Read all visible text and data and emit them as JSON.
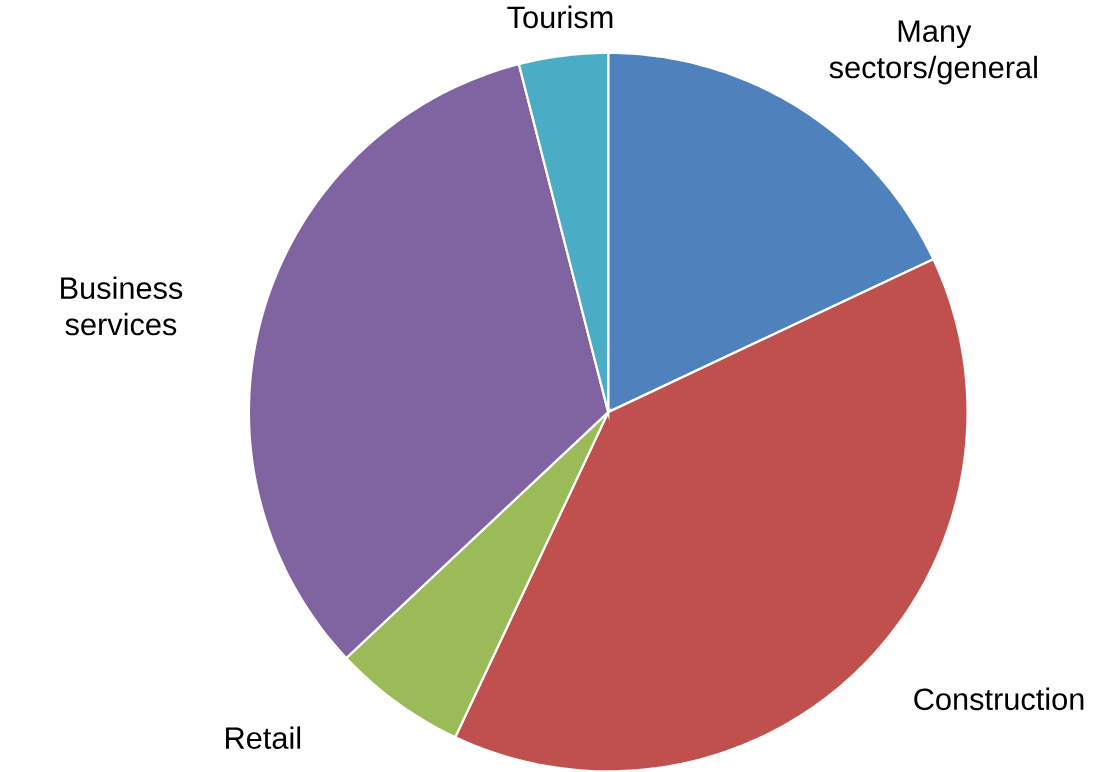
{
  "chart_data": {
    "type": "pie",
    "categories": [
      "Many sectors/general",
      "Construction",
      "Retail",
      "Business services",
      "Tourism"
    ],
    "values": [
      18,
      39,
      6,
      33,
      4
    ],
    "colors": [
      "#4f81bd",
      "#c0504d",
      "#9bbb59",
      "#8064a2",
      "#4bacc6"
    ]
  }
}
